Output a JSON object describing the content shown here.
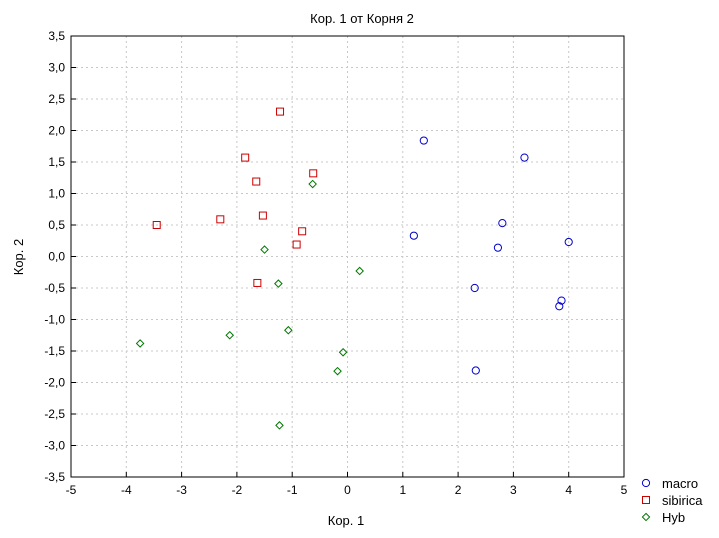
{
  "chart_data": {
    "type": "scatter",
    "title": "Кор. 1 от Корня 2",
    "xlabel": "Кор. 1",
    "ylabel": "Кор. 2",
    "xlim": [
      -5,
      5
    ],
    "ylim": [
      -3.5,
      3.5
    ],
    "xticks": [
      -5,
      -4,
      -3,
      -2,
      -1,
      0,
      1,
      2,
      3,
      4,
      5
    ],
    "yticks": [
      -3.5,
      -3.0,
      -2.5,
      -2.0,
      -1.5,
      -1.0,
      -0.5,
      0.0,
      0.5,
      1.0,
      1.5,
      2.0,
      2.5,
      3.0,
      3.5
    ],
    "xtick_labels": [
      "-5",
      "-4",
      "-3",
      "-2",
      "-1",
      "0",
      "1",
      "2",
      "3",
      "4",
      "5"
    ],
    "ytick_labels": [
      "-3,5",
      "-3,0",
      "-2,5",
      "-2,0",
      "-1,5",
      "-1,0",
      "-0,5",
      "0,0",
      "0,5",
      "1,0",
      "1,5",
      "2,0",
      "2,5",
      "3,0",
      "3,5"
    ],
    "grid": true,
    "legend_position": "bottom-right",
    "series": [
      {
        "name": "macro",
        "marker": "circle",
        "color": "#0000cc",
        "points": [
          [
            1.38,
            1.84
          ],
          [
            3.2,
            1.57
          ],
          [
            1.2,
            0.33
          ],
          [
            2.8,
            0.53
          ],
          [
            2.72,
            0.14
          ],
          [
            4.0,
            0.23
          ],
          [
            2.3,
            -0.5
          ],
          [
            3.87,
            -0.7
          ],
          [
            3.83,
            -0.79
          ],
          [
            2.32,
            -1.81
          ]
        ]
      },
      {
        "name": "sibirica",
        "marker": "square",
        "color": "#cc0000",
        "points": [
          [
            -1.22,
            2.3
          ],
          [
            -1.85,
            1.57
          ],
          [
            -1.65,
            1.19
          ],
          [
            -0.62,
            1.32
          ],
          [
            -3.45,
            0.5
          ],
          [
            -2.3,
            0.59
          ],
          [
            -1.53,
            0.65
          ],
          [
            -0.82,
            0.4
          ],
          [
            -0.92,
            0.19
          ],
          [
            -1.63,
            -0.42
          ]
        ]
      },
      {
        "name": "Hyb",
        "marker": "diamond",
        "color": "#007700",
        "points": [
          [
            -0.63,
            1.15
          ],
          [
            -1.5,
            0.11
          ],
          [
            0.22,
            -0.23
          ],
          [
            -1.25,
            -0.43
          ],
          [
            -1.07,
            -1.17
          ],
          [
            -2.13,
            -1.25
          ],
          [
            -3.75,
            -1.38
          ],
          [
            -0.08,
            -1.52
          ],
          [
            -0.18,
            -1.82
          ],
          [
            -1.23,
            -2.68
          ]
        ]
      }
    ]
  }
}
